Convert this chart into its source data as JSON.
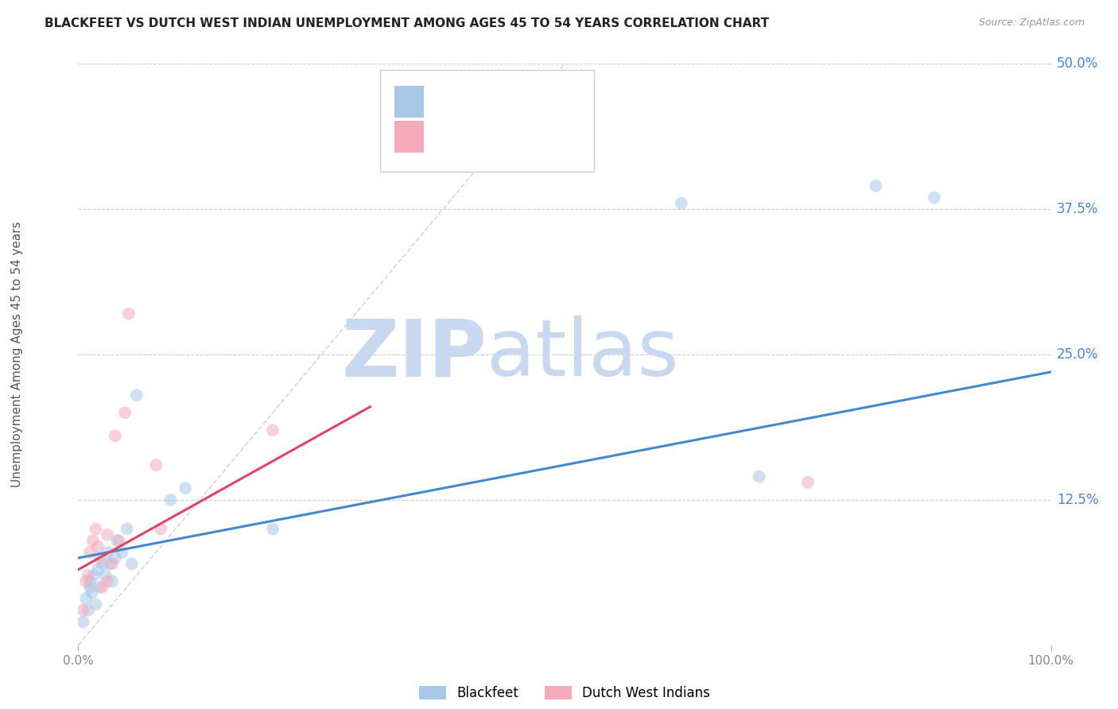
{
  "title": "BLACKFEET VS DUTCH WEST INDIAN UNEMPLOYMENT AMONG AGES 45 TO 54 YEARS CORRELATION CHART",
  "source": "Source: ZipAtlas.com",
  "ylabel": "Unemployment Among Ages 45 to 54 years",
  "xlim": [
    0.0,
    1.0
  ],
  "ylim": [
    0.0,
    0.5
  ],
  "ytick_values": [
    0.0,
    0.125,
    0.25,
    0.375,
    0.5
  ],
  "ytick_labels": [
    "",
    "12.5%",
    "25.0%",
    "37.5%",
    "50.0%"
  ],
  "xtick_values": [
    0.0,
    1.0
  ],
  "xtick_labels": [
    "0.0%",
    "100.0%"
  ],
  "grid_color": "#cccccc",
  "background_color": "#ffffff",
  "blackfeet_color": "#a8c8e8",
  "dutch_color": "#f4aabb",
  "blackfeet_line_color": "#4488cc",
  "dutch_line_color": "#dd4466",
  "diagonal_color": "#cccccc",
  "legend_label1": "Blackfeet",
  "legend_label2": "Dutch West Indians",
  "watermark_zip": "ZIP",
  "watermark_atlas": "atlas",
  "watermark_color": "#c8d8ee",
  "title_color": "#222222",
  "axis_label_color": "#555555",
  "right_tick_color": "#4488cc",
  "blackfeet_x": [
    0.005,
    0.008,
    0.01,
    0.012,
    0.012,
    0.014,
    0.016,
    0.018,
    0.02,
    0.022,
    0.025,
    0.028,
    0.03,
    0.032,
    0.035,
    0.038,
    0.04,
    0.045,
    0.05,
    0.055,
    0.06,
    0.095,
    0.11,
    0.2,
    0.62,
    0.7,
    0.82,
    0.88
  ],
  "blackfeet_y": [
    0.02,
    0.04,
    0.03,
    0.05,
    0.055,
    0.045,
    0.06,
    0.035,
    0.065,
    0.05,
    0.07,
    0.06,
    0.08,
    0.07,
    0.055,
    0.075,
    0.09,
    0.08,
    0.1,
    0.07,
    0.215,
    0.125,
    0.135,
    0.1,
    0.38,
    0.145,
    0.395,
    0.385
  ],
  "dutch_x": [
    0.005,
    0.008,
    0.01,
    0.012,
    0.015,
    0.018,
    0.02,
    0.022,
    0.025,
    0.03,
    0.03,
    0.035,
    0.038,
    0.042,
    0.048,
    0.052,
    0.08,
    0.085,
    0.2,
    0.75
  ],
  "dutch_y": [
    0.03,
    0.055,
    0.06,
    0.08,
    0.09,
    0.1,
    0.085,
    0.075,
    0.05,
    0.095,
    0.055,
    0.07,
    0.18,
    0.09,
    0.2,
    0.285,
    0.155,
    0.1,
    0.185,
    0.14
  ],
  "blackfeet_trend": [
    0.0,
    1.0,
    0.075,
    0.235
  ],
  "dutch_trend": [
    0.0,
    0.3,
    0.065,
    0.205
  ],
  "marker_size": 130,
  "marker_alpha": 0.55,
  "line_width": 2.2
}
